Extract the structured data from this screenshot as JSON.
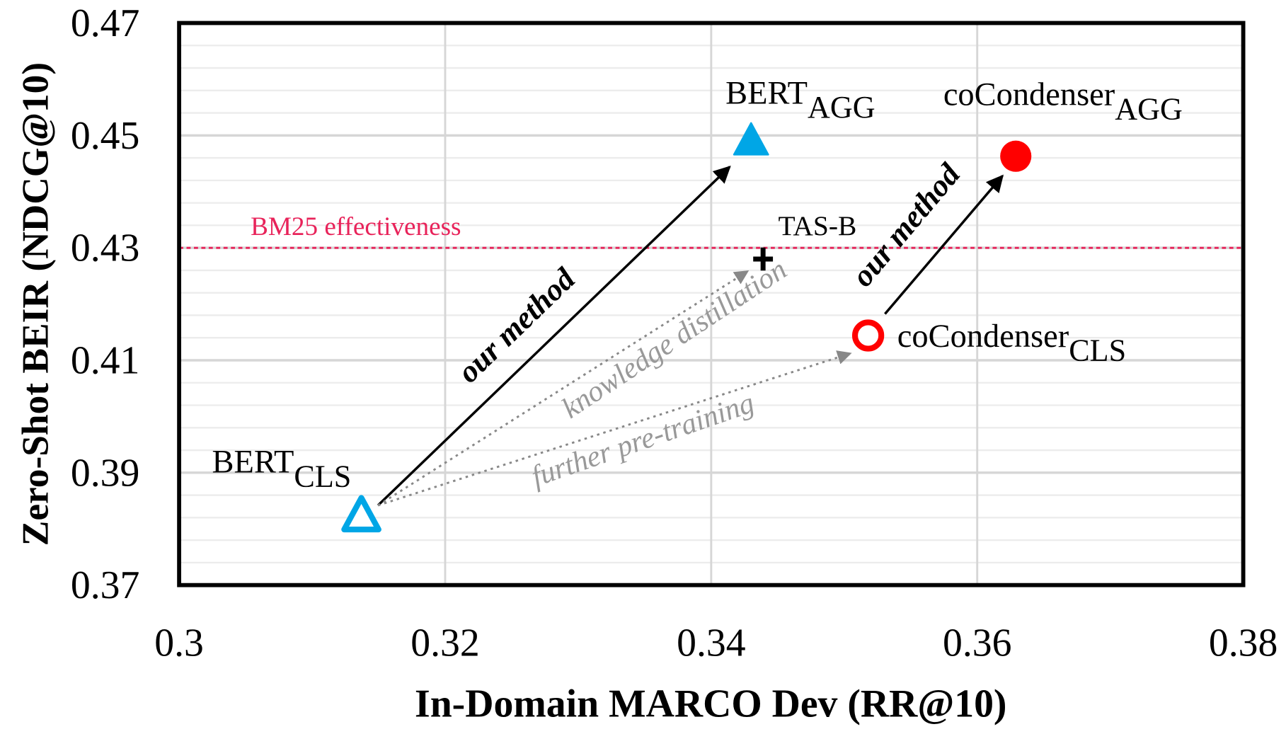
{
  "chart_data": {
    "type": "scatter",
    "title": "",
    "xlabel": "In-Domain MARCO Dev (RR@10)",
    "ylabel": "Zero-Shot BEIR (NDCG@10)",
    "xlim": [
      0.3,
      0.38
    ],
    "ylim": [
      0.37,
      0.47
    ],
    "xticks": [
      "0.3",
      "0.32",
      "0.34",
      "0.36",
      "0.38"
    ],
    "yticks": [
      "0.47",
      "0.45",
      "0.43",
      "0.41",
      "0.39",
      "0.37"
    ],
    "grid": true,
    "points": [
      {
        "name": "BERT",
        "sub": "CLS",
        "x": 0.3137,
        "y": 0.3823,
        "marker": "triangle-open",
        "color": "#00a6e6"
      },
      {
        "name": "BERT",
        "sub": "AGG",
        "x": 0.343,
        "y": 0.449,
        "marker": "triangle-filled",
        "color": "#00a6e6"
      },
      {
        "name": "TAS-B",
        "sub": "",
        "x": 0.3439,
        "y": 0.428,
        "marker": "plus",
        "color": "#000000"
      },
      {
        "name": "coCondenser",
        "sub": "CLS",
        "x": 0.3518,
        "y": 0.4144,
        "marker": "circle-open",
        "color": "#ff0000"
      },
      {
        "name": "coCondenser",
        "sub": "AGG",
        "x": 0.3629,
        "y": 0.4463,
        "marker": "circle-filled",
        "color": "#ff0000"
      }
    ],
    "reference_line": {
      "label": "BM25 effectiveness",
      "y": 0.43,
      "color": "#e8235a"
    },
    "annotations": [
      {
        "text": "our method",
        "style": "bold-italic"
      },
      {
        "text": "our method",
        "style": "bold-italic"
      },
      {
        "text": "knowledge distillation",
        "style": "italic-gray"
      },
      {
        "text": "further pre-training",
        "style": "italic-gray"
      }
    ]
  }
}
